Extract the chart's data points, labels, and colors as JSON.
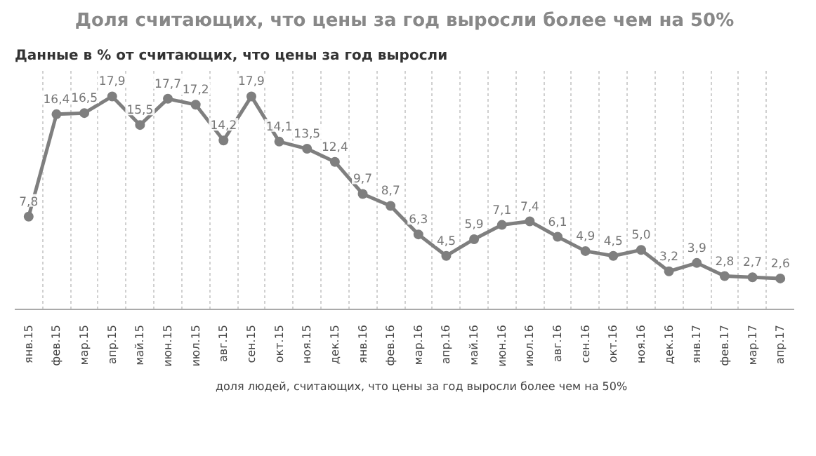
{
  "chart_data": {
    "type": "line",
    "title": "Доля считающих, что цены за год выросли более чем на 50%",
    "subtitle": "Данные в % от считающих, что цены за год выросли",
    "categories": [
      "янв.15",
      "фев.15",
      "мар.15",
      "апр.15",
      "май.15",
      "июн.15",
      "июл.15",
      "авг.15",
      "сен.15",
      "окт.15",
      "ноя.15",
      "дек.15",
      "янв.16",
      "фев.16",
      "мар.16",
      "апр.16",
      "май.16",
      "июн.16",
      "июл.16",
      "авг.16",
      "сен.16",
      "окт.16",
      "ноя.16",
      "дек.16",
      "янв.17",
      "фев.17",
      "мар.17",
      "апр.17"
    ],
    "series": [
      {
        "name": "доля людей, считающих, что цены за год выросли более чем на 50%",
        "color": "#7f7f7f",
        "values": [
          7.8,
          16.4,
          16.5,
          17.9,
          15.5,
          17.7,
          17.2,
          14.2,
          17.9,
          14.1,
          13.5,
          12.4,
          9.7,
          8.7,
          6.3,
          4.5,
          5.9,
          7.1,
          7.4,
          6.1,
          4.9,
          4.5,
          5.0,
          3.2,
          3.9,
          2.8,
          2.7,
          2.6
        ],
        "value_labels": [
          "7,8",
          "16,4",
          "16,5",
          "17,9",
          "15,5",
          "17,7",
          "17,2",
          "14,2",
          "17,9",
          "14,1",
          "13,5",
          "12,4",
          "9,7",
          "8,7",
          "6,3",
          "4,5",
          "5,9",
          "7,1",
          "7,4",
          "6,1",
          "4,9",
          "4,5",
          "5,0",
          "3,2",
          "3,9",
          "2,8",
          "2,7",
          "2,6"
        ]
      }
    ],
    "marker": "circle",
    "grid": "x",
    "legend": "bottom",
    "tick_labels": "x"
  }
}
